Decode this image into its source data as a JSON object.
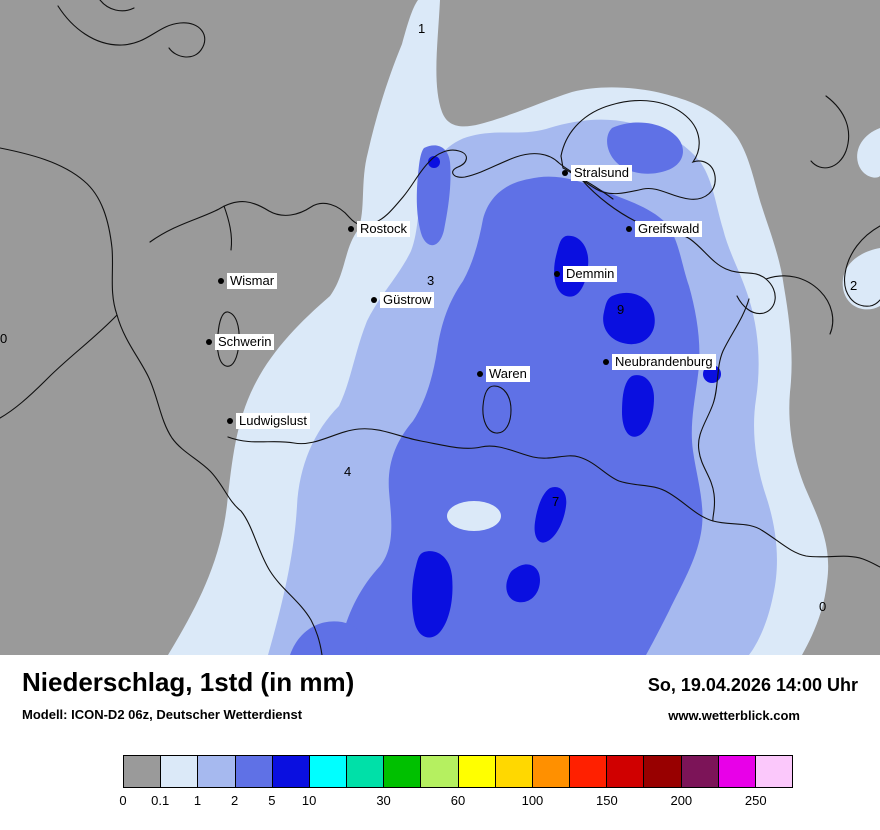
{
  "map": {
    "cities": [
      "Stralsund",
      "Greifswald",
      "Rostock",
      "Wismar",
      "Güstrow",
      "Demmin",
      "Schwerin",
      "Neubrandenburg",
      "Waren",
      "Ludwigslust"
    ],
    "values": [
      "1",
      "3",
      "9",
      "2",
      "4",
      "7",
      "0",
      "0"
    ],
    "colors": {
      "background": "#9a9a9a",
      "rain_level1": "#dbe9f8",
      "rain_level2": "#a6b9ef",
      "rain_level3": "#5f71e6",
      "rain_level4": "#0a0fe0",
      "border_lines": "#111111"
    }
  },
  "panel": {
    "title": "Niederschlag, 1std (in mm)",
    "datetime": "So, 19.04.2026 14:00 Uhr",
    "model": "Modell: ICON-D2 06z, Deutscher Wetterdienst",
    "website": "www.wetterblick.com"
  },
  "legend": {
    "colors": [
      "#9a9a9a",
      "#dbe9f8",
      "#a6b9ef",
      "#5f71e6",
      "#0a0fe0",
      "#00ffff",
      "#00e0a8",
      "#00c000",
      "#b5f060",
      "#ffff00",
      "#ffd800",
      "#ff9000",
      "#ff2000",
      "#d00000",
      "#980000",
      "#7c1458",
      "#e800e8",
      "#fbc8fb"
    ],
    "labels": [
      "0",
      "0.1",
      "1",
      "2",
      "5",
      "10",
      "30",
      "60",
      "100",
      "150",
      "200",
      "250"
    ],
    "label_positions_seg": [
      0,
      1,
      2,
      3,
      4,
      5,
      7,
      9,
      11,
      13,
      15,
      17
    ]
  }
}
